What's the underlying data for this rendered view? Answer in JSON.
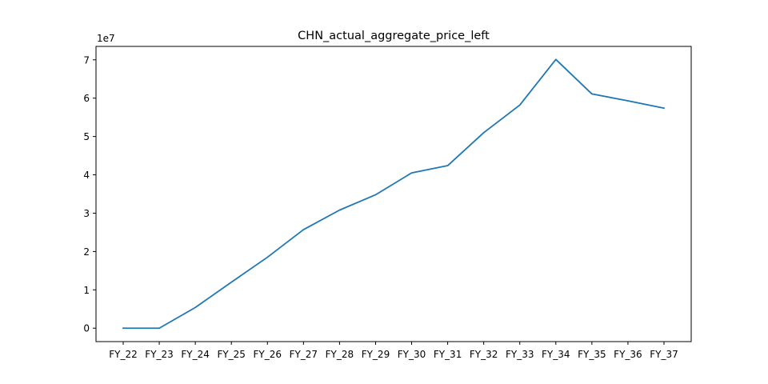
{
  "chart_data": {
    "type": "line",
    "title": "CHN_actual_aggregate_price_left",
    "xlabel": "",
    "ylabel": "",
    "y_offset_label": "1e7",
    "categories": [
      "FY_22",
      "FY_23",
      "FY_24",
      "FY_25",
      "FY_26",
      "FY_27",
      "FY_28",
      "FY_29",
      "FY_30",
      "FY_31",
      "FY_32",
      "FY_33",
      "FY_34",
      "FY_35",
      "FY_36",
      "FY_37"
    ],
    "series": [
      {
        "values": [
          0,
          0,
          5400000,
          12000000,
          18500000,
          25700000,
          30800000,
          34800000,
          40500000,
          42400000,
          51000000,
          58200000,
          70100000,
          61100000,
          59300000,
          57400000
        ],
        "color": "#1f77b4"
      }
    ],
    "y_ticks": [
      0,
      1,
      2,
      3,
      4,
      5,
      6,
      7
    ],
    "y_tick_scale": 10000000,
    "ylim": [
      -3500000,
      73500000
    ],
    "grid": false
  }
}
